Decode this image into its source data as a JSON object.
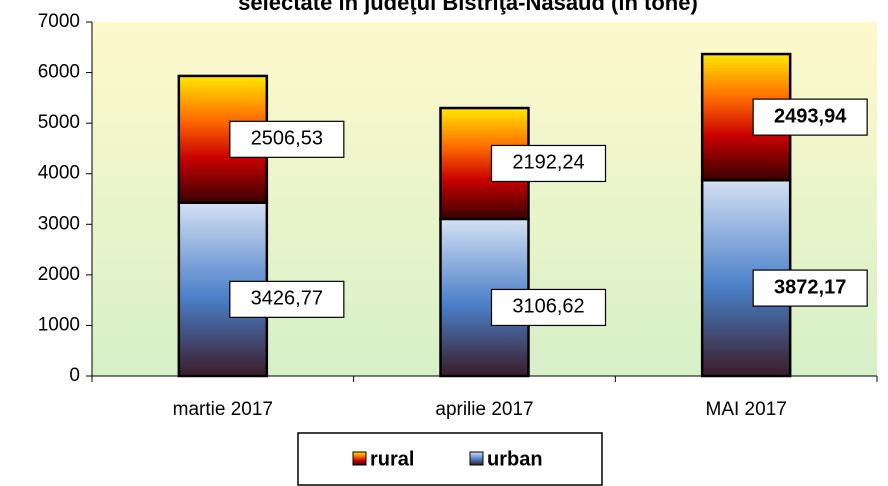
{
  "chart_data": {
    "type": "stacked_bar",
    "title": "selectate în judeţul Bistriţa-Năsăud (în tone)",
    "categories": [
      "martie 2017",
      "aprilie 2017",
      "MAI 2017"
    ],
    "series": [
      {
        "name": "urban",
        "color": "#4a7fc8",
        "values": [
          3426.77,
          3106.62,
          3872.17
        ],
        "value_labels": [
          "3426,77",
          "3106,62",
          "3872,17"
        ]
      },
      {
        "name": "rural",
        "color": "#e02000",
        "values": [
          2506.53,
          2192.24,
          2493.94
        ],
        "value_labels": [
          "2506,53",
          "2192,24",
          "2493,94"
        ]
      }
    ],
    "bold_labels": [
      false,
      false,
      true
    ],
    "ylim": [
      0,
      7000
    ],
    "yticks": [
      0,
      1000,
      2000,
      3000,
      4000,
      5000,
      6000,
      7000
    ],
    "grid": false,
    "legend": "bottom"
  }
}
